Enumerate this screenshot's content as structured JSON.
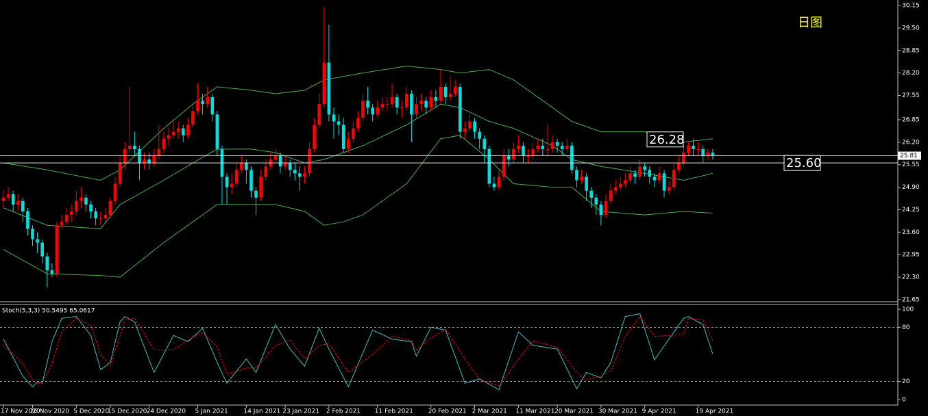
{
  "chart_data": [
    {
      "type": "candlestick",
      "open": [
        24.5,
        24.6,
        24.7,
        24.4,
        24.5,
        24.2,
        23.7,
        23.4,
        23.3,
        22.9,
        22.5,
        22.4,
        23.8,
        23.9,
        24.1,
        24.2,
        24.5,
        24.6,
        24.4,
        24.2,
        24.0,
        24.0,
        24.1,
        24.5,
        25.0,
        25.6,
        26.0,
        26.1,
        26.0,
        25.6,
        25.7,
        25.6,
        25.8,
        26.0,
        26.3,
        26.4,
        26.5,
        26.6,
        26.4,
        26.7,
        27.1,
        27.4,
        27.3,
        27.5,
        27.0,
        26.0,
        25.2,
        24.9,
        25.0,
        25.4,
        25.6,
        25.4,
        24.8,
        24.6,
        25.2,
        25.5,
        25.7,
        25.8,
        25.5,
        25.6,
        25.4,
        25.3,
        25.2,
        25.3,
        26.0,
        26.7,
        27.3,
        28.5,
        27.0,
        26.8,
        26.7,
        26.0,
        26.3,
        26.6,
        26.9,
        27.4,
        27.2,
        27.0,
        27.2,
        27.3,
        27.3,
        27.5,
        27.2,
        27.2,
        27.6,
        27.0,
        27.3,
        27.4,
        27.2,
        27.5,
        27.4,
        27.8,
        27.5,
        27.6,
        27.8,
        26.5,
        26.6,
        26.8,
        26.5,
        26.3,
        26.0,
        25.0,
        24.9,
        25.2,
        25.8,
        25.7,
        26.0,
        26.1,
        25.8,
        25.8,
        26.0,
        26.1,
        26.0,
        26.0,
        26.2,
        26.1,
        26.0,
        26.1,
        25.4,
        25.1,
        25.2,
        24.8,
        24.6,
        24.4,
        24.1,
        24.5,
        24.8,
        24.9,
        25.0,
        25.1,
        25.3,
        25.2,
        25.5,
        25.4,
        25.2,
        25.1,
        25.3,
        24.8,
        24.9,
        25.4,
        25.6,
        25.9,
        26.1,
        26.0,
        26.0,
        25.8,
        25.9
      ],
      "high": [
        24.8,
        24.9,
        24.8,
        24.7,
        24.6,
        24.3,
        23.8,
        23.6,
        23.4,
        23.0,
        22.7,
        23.9,
        24.1,
        24.3,
        24.4,
        24.8,
        24.9,
        24.7,
        24.5,
        24.3,
        24.2,
        24.3,
        24.6,
        25.2,
        25.8,
        26.2,
        27.8,
        26.5,
        26.1,
        25.9,
        25.9,
        26.0,
        26.7,
        26.5,
        26.6,
        26.8,
        26.8,
        26.7,
        26.9,
        27.3,
        27.9,
        27.6,
        27.8,
        27.6,
        27.1,
        26.1,
        25.3,
        25.3,
        25.6,
        25.8,
        25.7,
        25.5,
        24.9,
        25.4,
        25.7,
        25.9,
        26.0,
        25.9,
        25.8,
        25.7,
        25.6,
        25.5,
        25.5,
        26.2,
        26.9,
        27.6,
        30.1,
        29.6,
        27.2,
        27.0,
        26.9,
        26.5,
        26.8,
        27.1,
        27.6,
        27.8,
        27.3,
        27.4,
        27.5,
        27.5,
        27.9,
        27.6,
        27.4,
        27.8,
        27.7,
        27.5,
        27.6,
        27.5,
        27.7,
        27.7,
        28.3,
        27.9,
        28.1,
        28.0,
        27.9,
        26.8,
        27.0,
        26.9,
        26.6,
        26.4,
        26.1,
        25.2,
        25.4,
        26.0,
        26.0,
        26.2,
        26.4,
        26.2,
        26.0,
        26.2,
        26.3,
        26.3,
        26.7,
        26.4,
        26.3,
        26.2,
        26.3,
        26.2,
        25.5,
        25.4,
        25.3,
        24.9,
        24.7,
        24.5,
        24.7,
        25.0,
        25.1,
        25.2,
        25.3,
        25.5,
        25.4,
        25.7,
        25.6,
        25.5,
        25.3,
        25.5,
        25.4,
        25.1,
        25.6,
        25.8,
        26.1,
        26.2,
        26.3,
        26.2,
        26.1,
        26.0,
        26.0
      ],
      "low": [
        24.3,
        24.5,
        24.2,
        24.2,
        23.9,
        23.5,
        23.2,
        23.0,
        22.7,
        22.0,
        22.3,
        22.3,
        23.7,
        23.8,
        23.9,
        24.1,
        24.3,
        24.2,
        24.0,
        23.8,
        23.8,
        23.9,
        24.0,
        24.4,
        24.9,
        25.4,
        25.9,
        25.8,
        25.1,
        25.4,
        25.4,
        25.5,
        25.7,
        25.9,
        26.1,
        26.3,
        26.3,
        26.2,
        26.3,
        26.6,
        27.0,
        27.0,
        27.2,
        26.8,
        25.8,
        24.4,
        24.4,
        24.7,
        24.9,
        25.3,
        25.0,
        24.6,
        24.1,
        24.5,
        25.1,
        25.4,
        25.6,
        25.3,
        25.4,
        25.2,
        25.1,
        24.8,
        25.0,
        25.2,
        25.9,
        26.6,
        27.2,
        26.8,
        26.3,
        26.4,
        25.9,
        25.9,
        26.2,
        26.5,
        26.8,
        27.0,
        26.8,
        26.9,
        27.1,
        27.1,
        27.2,
        27.0,
        26.9,
        27.1,
        26.2,
        26.9,
        27.1,
        27.0,
        27.1,
        27.2,
        27.3,
        27.3,
        27.4,
        27.5,
        26.3,
        26.3,
        26.5,
        26.3,
        26.0,
        25.6,
        24.9,
        24.8,
        24.8,
        25.1,
        25.5,
        25.6,
        25.9,
        25.6,
        25.6,
        25.7,
        25.9,
        25.8,
        25.8,
        25.9,
        25.9,
        25.8,
        25.9,
        25.3,
        24.9,
        25.0,
        24.5,
        24.3,
        24.1,
        23.8,
        24.0,
        24.4,
        24.7,
        24.8,
        24.9,
        25.0,
        25.0,
        25.1,
        25.2,
        25.0,
        24.9,
        25.0,
        24.6,
        24.7,
        24.8,
        25.3,
        25.5,
        25.8,
        25.8,
        25.8,
        25.6,
        25.7,
        25.7
      ],
      "close": [
        24.6,
        24.7,
        24.4,
        24.5,
        24.2,
        23.7,
        23.4,
        23.3,
        22.9,
        22.5,
        22.4,
        23.8,
        23.9,
        24.1,
        24.2,
        24.5,
        24.6,
        24.4,
        24.2,
        24.0,
        24.0,
        24.1,
        24.5,
        25.0,
        25.6,
        26.0,
        26.1,
        26.0,
        25.6,
        25.7,
        25.6,
        25.8,
        26.0,
        26.3,
        26.4,
        26.5,
        26.6,
        26.4,
        26.7,
        27.1,
        27.4,
        27.3,
        27.5,
        27.0,
        26.0,
        25.2,
        24.9,
        25.0,
        25.4,
        25.6,
        25.4,
        24.8,
        24.6,
        25.2,
        25.5,
        25.7,
        25.8,
        25.5,
        25.6,
        25.4,
        25.3,
        25.2,
        25.3,
        26.0,
        26.7,
        27.3,
        28.5,
        27.0,
        26.8,
        26.7,
        26.0,
        26.3,
        26.6,
        26.9,
        27.4,
        27.2,
        27.0,
        27.2,
        27.3,
        27.3,
        27.5,
        27.2,
        27.2,
        27.6,
        27.0,
        27.3,
        27.4,
        27.2,
        27.5,
        27.4,
        27.8,
        27.5,
        27.6,
        27.8,
        26.5,
        26.6,
        26.8,
        26.5,
        26.3,
        26.0,
        25.0,
        24.9,
        25.2,
        25.8,
        25.7,
        26.0,
        26.1,
        25.8,
        25.8,
        26.0,
        26.1,
        26.0,
        26.0,
        26.2,
        26.1,
        26.0,
        26.1,
        25.4,
        25.1,
        25.2,
        24.8,
        24.6,
        24.4,
        24.1,
        24.5,
        24.8,
        24.9,
        25.0,
        25.1,
        25.3,
        25.2,
        25.5,
        25.4,
        25.2,
        25.1,
        25.3,
        24.8,
        24.9,
        25.4,
        25.6,
        25.9,
        26.1,
        26.0,
        26.0,
        25.8,
        25.9,
        25.81
      ],
      "up_color": "#ff0000",
      "down_color": "#00e0e0",
      "band_x": [
        0,
        9,
        20,
        24,
        33,
        39,
        44,
        51,
        56,
        62,
        66,
        70,
        74,
        83,
        90,
        94,
        100,
        105,
        113,
        117,
        123,
        132,
        140,
        146
      ],
      "band_upper": [
        25.6,
        25.4,
        25.1,
        25.4,
        26.6,
        27.3,
        27.8,
        27.7,
        27.6,
        27.7,
        28.0,
        28.1,
        28.2,
        28.4,
        28.3,
        28.2,
        28.3,
        28.0,
        27.2,
        26.8,
        26.5,
        26.5,
        26.2,
        26.3
      ],
      "band_middle": [
        24.3,
        23.8,
        23.7,
        24.4,
        25.1,
        25.6,
        26.0,
        26.0,
        25.9,
        25.6,
        25.7,
        25.9,
        26.1,
        26.7,
        27.3,
        27.2,
        26.8,
        26.6,
        26.1,
        25.7,
        25.5,
        25.3,
        25.1,
        25.3
      ],
      "band_lower": [
        23.1,
        22.4,
        22.35,
        22.3,
        23.3,
        23.9,
        24.4,
        24.4,
        24.4,
        24.2,
        23.8,
        23.9,
        24.1,
        25.0,
        26.3,
        26.4,
        25.7,
        25.0,
        24.9,
        24.9,
        24.2,
        24.1,
        24.2,
        24.15
      ],
      "band_color": "#4caf50",
      "xlim": [
        -0.7,
        184.1
      ],
      "xticks": [
        {
          "value": 0,
          "label": "17 Nov 2020"
        },
        {
          "value": 6,
          "label": "26 Nov 2020"
        },
        {
          "value": 15,
          "label": "5 Dec 2020"
        },
        {
          "value": 22,
          "label": "15 Dec 2020"
        },
        {
          "value": 30,
          "label": "24 Dec 2020"
        },
        {
          "value": 40,
          "label": "5 Jan 2021"
        },
        {
          "value": 50,
          "label": "14 Jan 2021"
        },
        {
          "value": 58,
          "label": "23 Jan 2021"
        },
        {
          "value": 67,
          "label": "2 Feb 2021"
        },
        {
          "value": 77,
          "label": "11 Feb 2021"
        },
        {
          "value": 88,
          "label": "20 Feb 2021"
        },
        {
          "value": 97,
          "label": "2 Mar 2021"
        },
        {
          "value": 106,
          "label": "11 Mar 2021"
        },
        {
          "value": 114,
          "label": "20 Mar 2021"
        },
        {
          "value": 123,
          "label": "30 Mar 2021"
        },
        {
          "value": 132,
          "label": "9 Apr 2021"
        },
        {
          "value": 143,
          "label": "19 Apr 2021"
        }
      ],
      "ylim": [
        21.65,
        30.15
      ],
      "yticks": [
        30.15,
        {
          "value": 29.5,
          "label": "29.50"
        },
        28.85,
        {
          "value": 28.2,
          "label": "28.20"
        },
        27.55,
        26.85,
        {
          "value": 26.2,
          "label": "26.20"
        },
        25.55,
        {
          "value": 24.9,
          "label": "24.90"
        },
        24.25,
        {
          "value": 23.6,
          "label": "23.60"
        },
        22.95,
        {
          "value": 22.3,
          "label": "22.30"
        },
        21.65
      ],
      "price_line": 25.81,
      "level_line": {
        "value": 25.6,
        "label": "25.60"
      },
      "marker": 26.28,
      "chart_label": "日图"
    },
    {
      "type": "line",
      "title": "Stoch(5,3,3) 50.5495 65.0617",
      "x": [
        0,
        4,
        6,
        7,
        8,
        10,
        12,
        15,
        18,
        20,
        22,
        24,
        25,
        27,
        31,
        35,
        38,
        41,
        44,
        46,
        50,
        52,
        56,
        59,
        62,
        65,
        67,
        71,
        76,
        80,
        84,
        85,
        88,
        91,
        95,
        98,
        102,
        106,
        109,
        114,
        118,
        120,
        123,
        125,
        128,
        131,
        134,
        140,
        141,
        144,
        146
      ],
      "xlim": [
        -0.7,
        184.1
      ],
      "series": [
        {
          "color": "#40c0c0",
          "values": [
            67,
            26,
            14,
            20,
            18,
            64,
            90,
            92,
            71,
            33,
            41,
            86,
            92,
            86,
            30,
            71,
            64,
            79,
            41,
            18,
            45,
            30,
            83,
            56,
            37,
            79,
            56,
            14,
            77,
            67,
            64,
            48,
            80,
            77,
            18,
            23,
            11,
            75,
            60,
            56,
            12,
            30,
            24,
            41,
            92,
            95,
            44,
            90,
            92,
            83,
            50.5495
          ]
        },
        {
          "color": "#ff0000",
          "dashed": true,
          "values": [
            60,
            40,
            22,
            18,
            18,
            40,
            75,
            90,
            82,
            50,
            38,
            70,
            88,
            90,
            55,
            55,
            66,
            74,
            58,
            28,
            35,
            35,
            60,
            66,
            45,
            60,
            62,
            30,
            50,
            70,
            65,
            55,
            68,
            78,
            45,
            22,
            15,
            45,
            65,
            58,
            30,
            22,
            26,
            32,
            70,
            92,
            70,
            72,
            90,
            88,
            65.0617
          ]
        }
      ],
      "ylim": [
        0,
        100
      ],
      "yticks": [
        100,
        80,
        20,
        0
      ],
      "levels": [
        20,
        80
      ]
    }
  ]
}
